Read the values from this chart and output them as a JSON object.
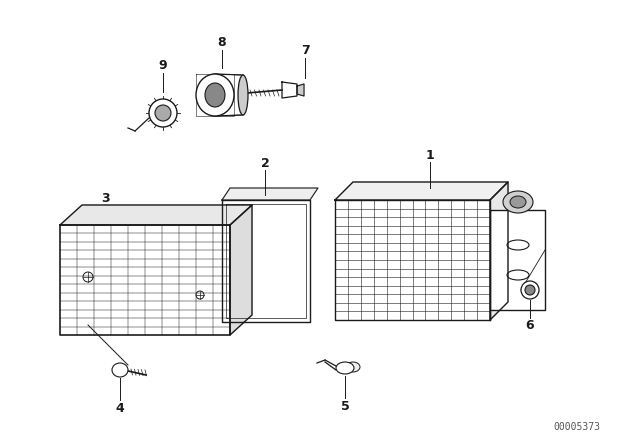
{
  "background_color": "#ffffff",
  "line_color": "#1a1a1a",
  "part_number_text": "00005373",
  "figsize": [
    6.4,
    4.48
  ],
  "dpi": 100
}
